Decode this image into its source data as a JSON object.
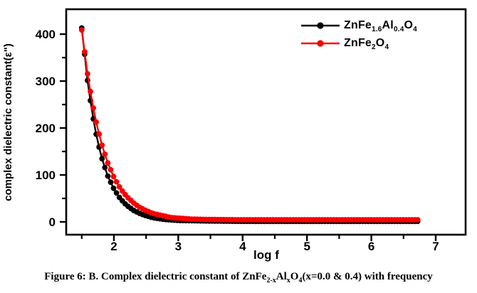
{
  "figure": {
    "caption_rich": "Figure 6: B. Complex dielectric constant of ZnFe_{2-x}Al_{x}O_{4}(x=0.0 & 0.4) with frequency"
  },
  "chart_data": {
    "type": "line",
    "title": "",
    "xlabel": "log f",
    "ylabel": "complex dielectric constant(ε\")",
    "x_ticks": [
      2,
      3,
      4,
      5,
      6,
      7
    ],
    "x_minor_ticks": [
      1.5,
      2.5,
      3.5,
      4.5,
      5.5,
      6.5
    ],
    "y_ticks": [
      0,
      100,
      200,
      300,
      400
    ],
    "y_minor_ticks": [
      50,
      150,
      250,
      350
    ],
    "xlim": [
      1.25,
      7.46
    ],
    "ylim": [
      -27,
      453
    ],
    "grid": false,
    "legend_position": "top-right-inside",
    "marker": "filled-circle",
    "x": [
      1.5,
      1.6,
      1.7,
      1.8,
      1.9,
      2.0,
      2.1,
      2.2,
      2.3,
      2.4,
      2.5,
      2.6,
      2.7,
      2.8,
      2.9,
      3.0,
      3.2,
      3.5,
      4.0,
      4.5,
      5.0,
      5.5,
      6.0,
      6.5,
      6.75
    ],
    "series": [
      {
        "name_rich": "ZnFe_{1.6}Al_{0.4}O_{4}",
        "color": "#000000",
        "values": [
          413,
          289,
          202,
          141,
          99,
          70,
          49,
          35,
          25,
          18,
          13,
          9,
          7,
          5,
          4,
          3,
          2.5,
          1.8,
          1.2,
          1,
          1,
          1,
          1,
          1,
          1
        ]
      },
      {
        "name_rich": "ZnFe_{2}O_{4}",
        "color": "#f70000",
        "values": [
          409,
          305,
          227,
          170,
          127,
          95,
          71,
          54,
          41,
          31,
          24,
          18,
          15,
          12,
          9,
          8,
          6,
          5,
          4.5,
          4.5,
          4.5,
          4.5,
          4.5,
          4.5,
          4.5
        ]
      }
    ]
  }
}
